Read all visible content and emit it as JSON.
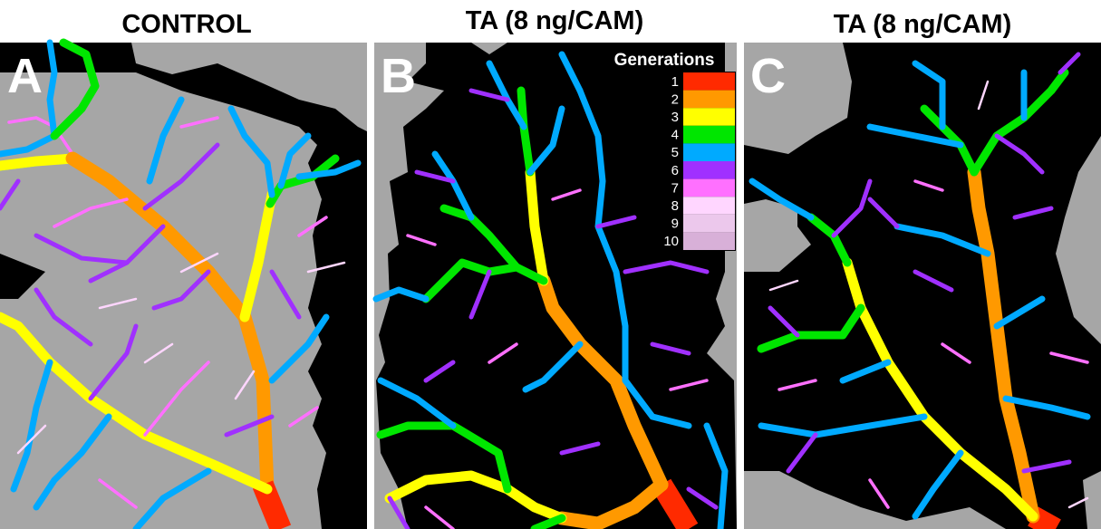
{
  "panels": [
    {
      "title": "CONTROL",
      "letter": "A"
    },
    {
      "title": "TA (8 ng/CAM)",
      "letter": "B"
    },
    {
      "title": "TA (8 ng/CAM)",
      "letter": "C"
    }
  ],
  "legend": {
    "title": "Generations",
    "items": [
      {
        "label": "1",
        "color": "#ff2a00"
      },
      {
        "label": "2",
        "color": "#ff9900"
      },
      {
        "label": "3",
        "color": "#ffff00"
      },
      {
        "label": "4",
        "color": "#00e600"
      },
      {
        "label": "5",
        "color": "#00aaff"
      },
      {
        "label": "6",
        "color": "#a030ff"
      },
      {
        "label": "7",
        "color": "#ff70ff"
      },
      {
        "label": "8",
        "color": "#ffd6ff"
      },
      {
        "label": "9",
        "color": "#ecc8ec"
      },
      {
        "label": "10",
        "color": "#d8b0d8"
      }
    ]
  }
}
